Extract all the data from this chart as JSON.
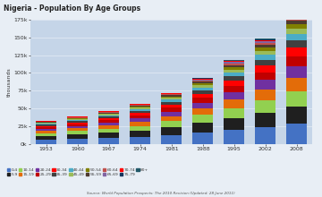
{
  "title": "Nigeria - Population By Age Groups",
  "ylabel": "thousands",
  "source": "Source: World Population Prospects: The 2010 Revision (Updated: 28 June 2011)",
  "years": [
    1953,
    1960,
    1967,
    1974,
    1981,
    1988,
    1995,
    2002,
    2008
  ],
  "age_groups": [
    "0-4",
    "5-9",
    "10-14",
    "15-19",
    "20-24",
    "25-29",
    "30-34",
    "35-39",
    "40-44",
    "45-49",
    "50-54",
    "55-59",
    "60-64",
    "65-69",
    "70-74",
    "75-79",
    "80+"
  ],
  "colors": [
    "#4472c4",
    "#1f1f1f",
    "#92d050",
    "#e36c09",
    "#7030a0",
    "#c00000",
    "#ff0000",
    "#404040",
    "#4bacc6",
    "#9bbb59",
    "#808000",
    "#4e3b30",
    "#c0504d",
    "#8064a2",
    "#ff0000",
    "#17375e",
    "#215868"
  ],
  "data": {
    "0-4": [
      6200,
      7200,
      8500,
      10000,
      12500,
      16000,
      19500,
      23500,
      28500
    ],
    "5-9": [
      5000,
      5900,
      7000,
      8300,
      10500,
      13500,
      16800,
      20500,
      24500
    ],
    "10-14": [
      4000,
      4800,
      5700,
      7000,
      8800,
      11200,
      14200,
      17500,
      21500
    ],
    "15-19": [
      3200,
      3900,
      4800,
      5900,
      7400,
      9500,
      12100,
      15300,
      19000
    ],
    "20-24": [
      2700,
      3200,
      3900,
      4900,
      6200,
      8000,
      10200,
      13000,
      16200
    ],
    "25-29": [
      2300,
      2700,
      3300,
      4100,
      5300,
      6800,
      8700,
      11200,
      14000
    ],
    "30-34": [
      1900,
      2300,
      2800,
      3500,
      4500,
      5700,
      7400,
      9600,
      12100
    ],
    "35-39": [
      1600,
      1900,
      2300,
      2900,
      3700,
      4800,
      6200,
      8000,
      10300
    ],
    "40-44": [
      1300,
      1600,
      1900,
      2400,
      3100,
      4000,
      5200,
      6800,
      8700
    ],
    "45-49": [
      1050,
      1300,
      1600,
      2000,
      2600,
      3400,
      4400,
      5700,
      7400
    ],
    "50-54": [
      850,
      1050,
      1250,
      1600,
      2100,
      2800,
      3600,
      4700,
      6200
    ],
    "55-59": [
      650,
      800,
      950,
      1250,
      1650,
      2200,
      2900,
      3800,
      5000
    ],
    "60-64": [
      520,
      640,
      770,
      990,
      1300,
      1750,
      2300,
      3000,
      4000
    ],
    "65-69": [
      380,
      470,
      570,
      740,
      970,
      1300,
      1750,
      2300,
      3100
    ],
    "70-74": [
      260,
      325,
      395,
      510,
      680,
      910,
      1230,
      1650,
      2200
    ],
    "75-79": [
      160,
      200,
      245,
      315,
      425,
      580,
      790,
      1060,
      1430
    ],
    "80+": [
      110,
      140,
      175,
      230,
      315,
      440,
      620,
      870,
      1200
    ]
  },
  "ylim": [
    0,
    175000
  ],
  "yticks": [
    0,
    25000,
    50000,
    75000,
    100000,
    125000,
    150000,
    175000
  ],
  "ytick_labels": [
    "0k",
    "25k",
    "50k",
    "75k",
    "100k",
    "125k",
    "150k",
    "175k"
  ],
  "background_color": "#c5d5e8",
  "plot_bg": "#c5d5e8",
  "fig_bg": "#e8eef5",
  "bar_width": 0.65
}
